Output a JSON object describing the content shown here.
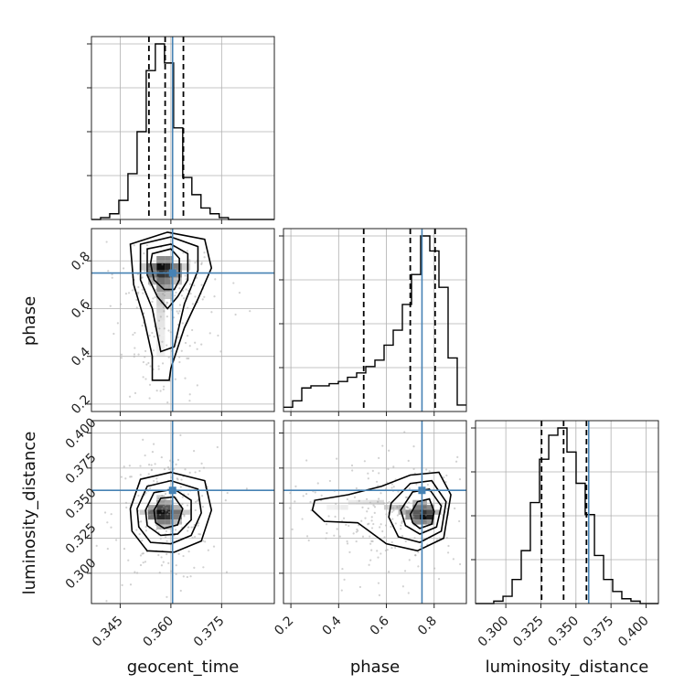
{
  "chart_data": {
    "type": "corner",
    "parameters": [
      "geocent_time",
      "phase",
      "luminosity_distance"
    ],
    "truth_color": "#4682b4",
    "axes_limits": {
      "geocent_time": [
        0.3365,
        0.3906
      ],
      "phase": [
        0.169,
        0.935
      ],
      "luminosity_distance": [
        0.2784,
        0.4088
      ]
    },
    "ticks": {
      "geocent_time": {
        "values": [
          0.345,
          0.36,
          0.375
        ],
        "labels": [
          "0.345",
          "0.360",
          "0.375"
        ]
      },
      "phase": {
        "values": [
          0.2,
          0.4,
          0.6,
          0.8
        ],
        "labels": [
          "0.2",
          "0.4",
          "0.6",
          "0.8"
        ]
      },
      "luminosity_distance": {
        "values": [
          0.3,
          0.325,
          0.35,
          0.375,
          0.4
        ],
        "labels": [
          "0.300",
          "0.325",
          "0.350",
          "0.375",
          "0.400"
        ]
      }
    },
    "truths": {
      "geocent_time": 0.3605,
      "phase": 0.749,
      "luminosity_distance": 0.3591
    },
    "quantiles": {
      "geocent_time": [
        0.3535,
        0.3583,
        0.3637
      ],
      "phase": [
        0.505,
        0.7,
        0.804
      ],
      "luminosity_distance": [
        0.3255,
        0.3412,
        0.3575
      ]
    },
    "histograms": {
      "geocent_time": {
        "edges": [
          0.3365,
          0.3392,
          0.3419,
          0.3446,
          0.3473,
          0.35,
          0.3527,
          0.3554,
          0.3581,
          0.3608,
          0.3635,
          0.3662,
          0.3689,
          0.3716,
          0.3743,
          0.377,
          0.3797,
          0.3824,
          0.3851,
          0.3878,
          0.3906
        ],
        "counts": [
          0,
          1,
          3,
          10,
          24,
          46,
          78,
          92,
          82,
          48,
          22,
          13,
          6,
          3,
          1,
          0,
          0,
          0,
          0,
          0
        ]
      },
      "phase": {
        "edges": [
          0.169,
          0.2073,
          0.2456,
          0.2839,
          0.3222,
          0.3605,
          0.3988,
          0.4371,
          0.4754,
          0.5137,
          0.552,
          0.5903,
          0.6286,
          0.6669,
          0.7052,
          0.7435,
          0.7818,
          0.8201,
          0.8584,
          0.8967,
          0.935
        ],
        "counts": [
          2,
          5,
          11,
          12,
          12,
          13,
          14,
          16,
          18,
          21,
          24,
          31,
          38,
          50,
          64,
          82,
          75,
          58,
          25,
          3
        ]
      },
      "luminosity_distance": {
        "edges": [
          0.2784,
          0.2849,
          0.2914,
          0.298,
          0.3045,
          0.311,
          0.3175,
          0.324,
          0.3306,
          0.3371,
          0.3436,
          0.3501,
          0.3566,
          0.3632,
          0.3697,
          0.3762,
          0.3827,
          0.3892,
          0.3958,
          0.4023,
          0.4088
        ],
        "counts": [
          0,
          0,
          1,
          3,
          10,
          22,
          42,
          60,
          70,
          73,
          63,
          50,
          37,
          20,
          10,
          5,
          2,
          1,
          0,
          0
        ]
      }
    },
    "contours_2d": [
      {
        "x": "geocent_time",
        "y": "phase",
        "levels": [
          [
            [
              0.3545,
              0.83
            ],
            [
              0.36,
              0.85
            ],
            [
              0.3625,
              0.81
            ],
            [
              0.3625,
              0.72
            ],
            [
              0.361,
              0.68
            ],
            [
              0.358,
              0.68
            ],
            [
              0.355,
              0.72
            ],
            [
              0.354,
              0.79
            ]
          ],
          [
            [
              0.353,
              0.85
            ],
            [
              0.36,
              0.87
            ],
            [
              0.365,
              0.83
            ],
            [
              0.365,
              0.72
            ],
            [
              0.362,
              0.65
            ],
            [
              0.359,
              0.6
            ],
            [
              0.356,
              0.65
            ],
            [
              0.353,
              0.74
            ]
          ],
          [
            [
              0.351,
              0.87
            ],
            [
              0.36,
              0.9
            ],
            [
              0.368,
              0.86
            ],
            [
              0.368,
              0.76
            ],
            [
              0.364,
              0.62
            ],
            [
              0.361,
              0.44
            ],
            [
              0.357,
              0.42
            ],
            [
              0.3545,
              0.6
            ],
            [
              0.351,
              0.72
            ]
          ],
          [
            [
              0.348,
              0.87
            ],
            [
              0.359,
              0.92
            ],
            [
              0.37,
              0.89
            ],
            [
              0.372,
              0.77
            ],
            [
              0.368,
              0.64
            ],
            [
              0.364,
              0.52
            ],
            [
              0.36,
              0.35
            ],
            [
              0.3595,
              0.3
            ],
            [
              0.3545,
              0.3
            ],
            [
              0.3545,
              0.4
            ],
            [
              0.352,
              0.56
            ],
            [
              0.349,
              0.7
            ]
          ]
        ]
      },
      {
        "x": "geocent_time",
        "y": "luminosity_distance",
        "levels": [
          [
            [
              0.355,
              0.345
            ],
            [
              0.357,
              0.3535
            ],
            [
              0.361,
              0.3545
            ],
            [
              0.3635,
              0.346
            ],
            [
              0.362,
              0.3345
            ],
            [
              0.358,
              0.332
            ],
            [
              0.3555,
              0.336
            ]
          ],
          [
            [
              0.3525,
              0.345
            ],
            [
              0.355,
              0.3575
            ],
            [
              0.361,
              0.36
            ],
            [
              0.366,
              0.352
            ],
            [
              0.366,
              0.338
            ],
            [
              0.362,
              0.328
            ],
            [
              0.357,
              0.327
            ],
            [
              0.353,
              0.334
            ]
          ],
          [
            [
              0.35,
              0.346
            ],
            [
              0.353,
              0.362
            ],
            [
              0.36,
              0.366
            ],
            [
              0.368,
              0.36
            ],
            [
              0.369,
              0.343
            ],
            [
              0.366,
              0.327
            ],
            [
              0.36,
              0.321
            ],
            [
              0.354,
              0.322
            ],
            [
              0.3505,
              0.333
            ]
          ],
          [
            [
              0.348,
              0.346
            ],
            [
              0.351,
              0.367
            ],
            [
              0.36,
              0.372
            ],
            [
              0.37,
              0.366
            ],
            [
              0.372,
              0.345
            ],
            [
              0.369,
              0.323
            ],
            [
              0.361,
              0.315
            ],
            [
              0.353,
              0.316
            ],
            [
              0.3485,
              0.33
            ]
          ]
        ]
      },
      {
        "x": "phase",
        "y": "luminosity_distance",
        "levels": [
          [
            [
              0.7,
              0.342
            ],
            [
              0.73,
              0.351
            ],
            [
              0.78,
              0.353
            ],
            [
              0.8,
              0.344
            ],
            [
              0.79,
              0.335
            ],
            [
              0.74,
              0.332
            ],
            [
              0.71,
              0.336
            ]
          ],
          [
            [
              0.66,
              0.345
            ],
            [
              0.71,
              0.358
            ],
            [
              0.78,
              0.36
            ],
            [
              0.83,
              0.348
            ],
            [
              0.81,
              0.333
            ],
            [
              0.74,
              0.328
            ],
            [
              0.68,
              0.334
            ]
          ],
          [
            [
              0.62,
              0.35
            ],
            [
              0.7,
              0.364
            ],
            [
              0.79,
              0.366
            ],
            [
              0.85,
              0.351
            ],
            [
              0.83,
              0.33
            ],
            [
              0.74,
              0.322
            ],
            [
              0.65,
              0.326
            ],
            [
              0.61,
              0.34
            ]
          ],
          [
            [
              0.3,
              0.352
            ],
            [
              0.44,
              0.356
            ],
            [
              0.58,
              0.362
            ],
            [
              0.7,
              0.37
            ],
            [
              0.82,
              0.372
            ],
            [
              0.87,
              0.356
            ],
            [
              0.84,
              0.325
            ],
            [
              0.73,
              0.316
            ],
            [
              0.6,
              0.321
            ],
            [
              0.48,
              0.336
            ],
            [
              0.34,
              0.337
            ],
            [
              0.29,
              0.345
            ]
          ]
        ]
      }
    ],
    "density_2d": [
      {
        "x": "geocent_time",
        "y": "phase",
        "cells": [
          [
            0.357,
            0.775,
            0.95
          ],
          [
            0.3595,
            0.775,
            0.85
          ],
          [
            0.357,
            0.745,
            0.8
          ],
          [
            0.3595,
            0.745,
            0.75
          ],
          [
            0.3545,
            0.775,
            0.55
          ],
          [
            0.362,
            0.775,
            0.5
          ],
          [
            0.3545,
            0.745,
            0.5
          ],
          [
            0.362,
            0.745,
            0.45
          ],
          [
            0.357,
            0.715,
            0.55
          ],
          [
            0.3595,
            0.715,
            0.5
          ],
          [
            0.357,
            0.685,
            0.4
          ],
          [
            0.3595,
            0.685,
            0.35
          ],
          [
            0.357,
            0.805,
            0.45
          ],
          [
            0.3595,
            0.805,
            0.45
          ],
          [
            0.357,
            0.655,
            0.25
          ],
          [
            0.3595,
            0.655,
            0.22
          ],
          [
            0.357,
            0.625,
            0.18
          ],
          [
            0.357,
            0.595,
            0.15
          ],
          [
            0.357,
            0.565,
            0.12
          ],
          [
            0.357,
            0.535,
            0.1
          ],
          [
            0.357,
            0.505,
            0.08
          ],
          [
            0.357,
            0.475,
            0.08
          ],
          [
            0.357,
            0.445,
            0.07
          ],
          [
            0.357,
            0.415,
            0.06
          ],
          [
            0.3545,
            0.715,
            0.3
          ],
          [
            0.362,
            0.715,
            0.25
          ],
          [
            0.352,
            0.775,
            0.2
          ],
          [
            0.3645,
            0.775,
            0.18
          ]
        ]
      },
      {
        "x": "geocent_time",
        "y": "luminosity_distance",
        "cells": [
          [
            0.357,
            0.3435,
            0.95
          ],
          [
            0.3595,
            0.3435,
            0.85
          ],
          [
            0.357,
            0.34,
            0.85
          ],
          [
            0.3595,
            0.34,
            0.8
          ],
          [
            0.357,
            0.347,
            0.7
          ],
          [
            0.3595,
            0.347,
            0.65
          ],
          [
            0.3545,
            0.3435,
            0.6
          ],
          [
            0.362,
            0.3435,
            0.55
          ],
          [
            0.3545,
            0.34,
            0.55
          ],
          [
            0.362,
            0.34,
            0.5
          ],
          [
            0.357,
            0.3365,
            0.5
          ],
          [
            0.3595,
            0.3365,
            0.5
          ],
          [
            0.357,
            0.3505,
            0.4
          ],
          [
            0.3595,
            0.3505,
            0.35
          ],
          [
            0.3545,
            0.347,
            0.35
          ],
          [
            0.362,
            0.347,
            0.3
          ],
          [
            0.352,
            0.3435,
            0.2
          ],
          [
            0.3645,
            0.3435,
            0.2
          ],
          [
            0.357,
            0.333,
            0.25
          ],
          [
            0.3595,
            0.333,
            0.25
          ],
          [
            0.357,
            0.354,
            0.2
          ],
          [
            0.362,
            0.3365,
            0.25
          ]
        ]
      },
      {
        "x": "phase",
        "y": "luminosity_distance",
        "cells": [
          [
            0.755,
            0.34,
            0.95
          ],
          [
            0.785,
            0.34,
            0.85
          ],
          [
            0.755,
            0.3435,
            0.8
          ],
          [
            0.725,
            0.3435,
            0.65
          ],
          [
            0.785,
            0.3435,
            0.7
          ],
          [
            0.725,
            0.34,
            0.65
          ],
          [
            0.755,
            0.347,
            0.55
          ],
          [
            0.725,
            0.347,
            0.5
          ],
          [
            0.785,
            0.347,
            0.45
          ],
          [
            0.695,
            0.3435,
            0.45
          ],
          [
            0.695,
            0.34,
            0.4
          ],
          [
            0.755,
            0.3365,
            0.5
          ],
          [
            0.725,
            0.3365,
            0.45
          ],
          [
            0.785,
            0.3365,
            0.4
          ],
          [
            0.665,
            0.3435,
            0.3
          ],
          [
            0.665,
            0.347,
            0.3
          ],
          [
            0.815,
            0.3435,
            0.3
          ],
          [
            0.635,
            0.347,
            0.22
          ],
          [
            0.605,
            0.347,
            0.18
          ],
          [
            0.575,
            0.3505,
            0.14
          ],
          [
            0.545,
            0.3505,
            0.12
          ],
          [
            0.515,
            0.3505,
            0.1
          ],
          [
            0.485,
            0.3505,
            0.09
          ],
          [
            0.455,
            0.3505,
            0.08
          ],
          [
            0.425,
            0.347,
            0.07
          ],
          [
            0.395,
            0.347,
            0.06
          ],
          [
            0.365,
            0.347,
            0.05
          ],
          [
            0.755,
            0.3505,
            0.35
          ],
          [
            0.725,
            0.3505,
            0.3
          ]
        ]
      }
    ]
  }
}
